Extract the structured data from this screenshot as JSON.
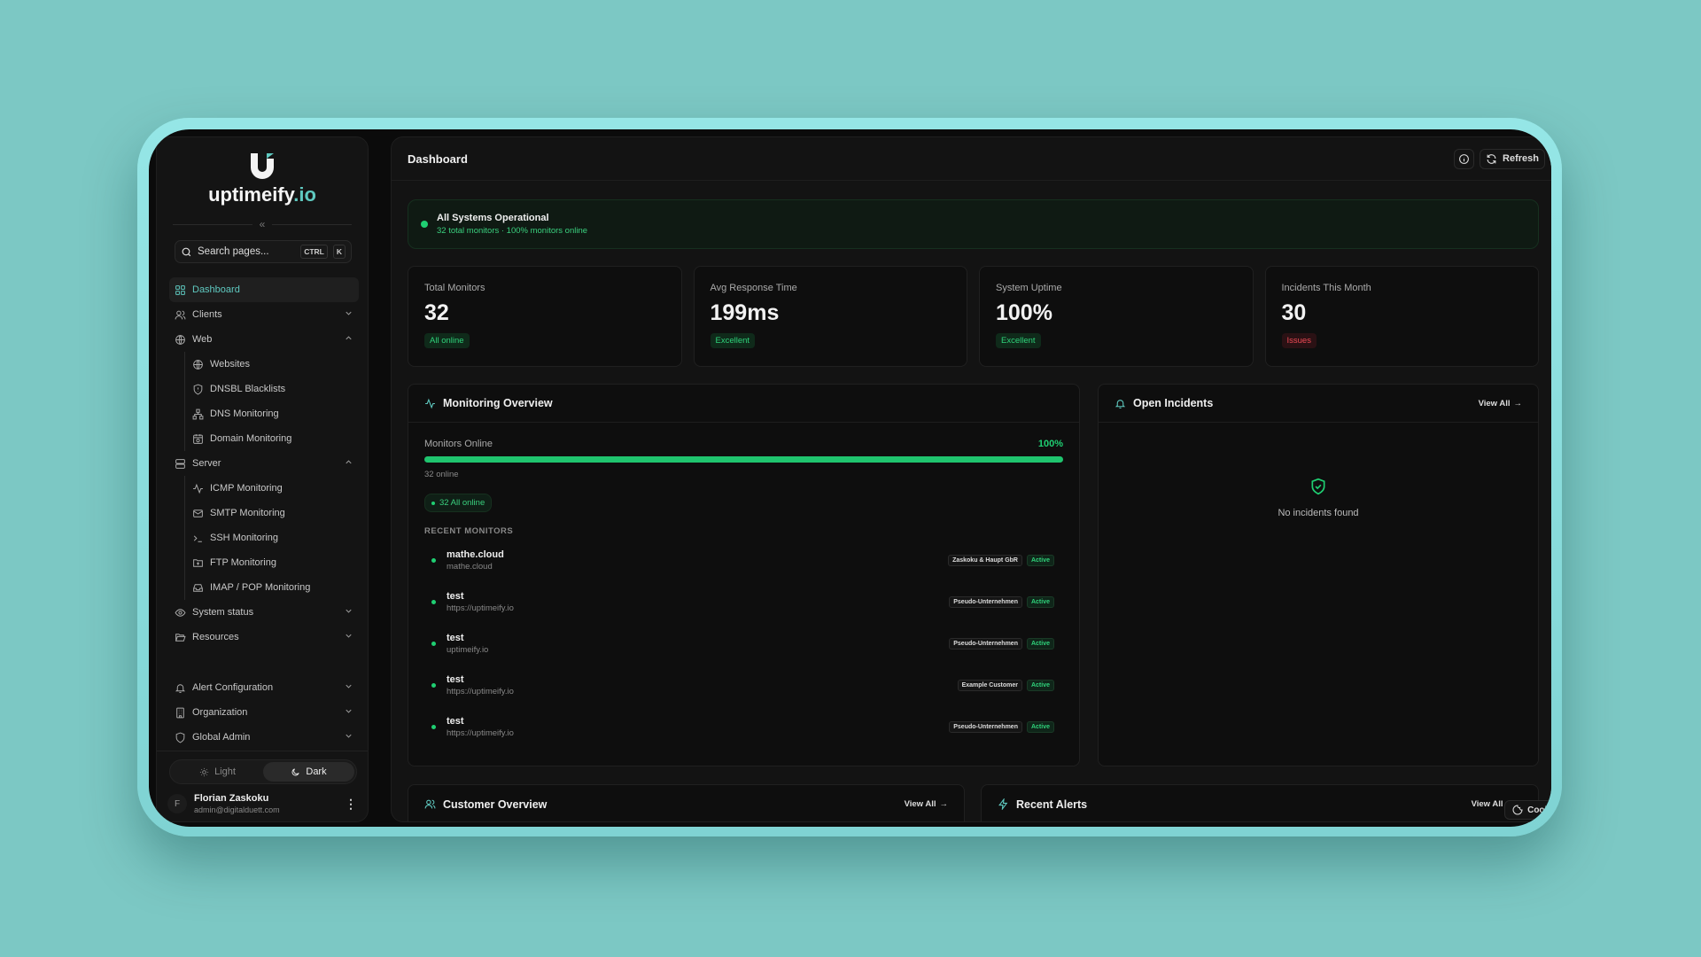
{
  "brand": {
    "name": "uptimeify",
    "tld": ".io",
    "accent": "#5fc9c0"
  },
  "sidebar": {
    "collapse_label": "«",
    "search": {
      "placeholder": "Search pages...",
      "kbd1": "CTRL",
      "kbd2": "K"
    },
    "items": [
      {
        "label": "Dashboard",
        "icon": "dashboard-icon",
        "active": true
      },
      {
        "label": "Clients",
        "icon": "users-icon",
        "chevron": "down"
      },
      {
        "label": "Web",
        "icon": "globe-icon",
        "chevron": "up"
      },
      {
        "label": "Websites",
        "icon": "globe-icon",
        "sub": true
      },
      {
        "label": "DNSBL Blacklists",
        "icon": "shield-alert-icon",
        "sub": true
      },
      {
        "label": "DNS Monitoring",
        "icon": "network-icon",
        "sub": true
      },
      {
        "label": "Domain Monitoring",
        "icon": "calendar-clock-icon",
        "sub": true
      },
      {
        "label": "Server",
        "icon": "server-icon",
        "chevron": "up"
      },
      {
        "label": "ICMP Monitoring",
        "icon": "activity-icon",
        "sub": true
      },
      {
        "label": "SMTP Monitoring",
        "icon": "mail-icon",
        "sub": true
      },
      {
        "label": "SSH Monitoring",
        "icon": "terminal-icon",
        "sub": true
      },
      {
        "label": "FTP Monitoring",
        "icon": "folder-upload-icon",
        "sub": true
      },
      {
        "label": "IMAP / POP Monitoring",
        "icon": "inbox-icon",
        "sub": true
      },
      {
        "label": "System status",
        "icon": "eye-icon",
        "chevron": "down"
      },
      {
        "label": "Resources",
        "icon": "folder-open-icon",
        "chevron": "down"
      },
      {
        "label": "Alert Configuration",
        "icon": "bell-icon",
        "chevron": "down",
        "gap": true
      },
      {
        "label": "Organization",
        "icon": "building-icon",
        "chevron": "down"
      },
      {
        "label": "Global Admin",
        "icon": "shield-icon",
        "chevron": "down"
      }
    ],
    "theme": {
      "light": "Light",
      "dark": "Dark",
      "selected": "Dark"
    },
    "user": {
      "initial": "F",
      "name": "Florian Zaskoku",
      "email": "admin@digitalduett.com"
    }
  },
  "header": {
    "title": "Dashboard",
    "refresh": "Refresh"
  },
  "banner": {
    "title": "All Systems Operational",
    "subtitle": "32 total monitors · 100% monitors online"
  },
  "stats": [
    {
      "label": "Total Monitors",
      "value": "32",
      "badge": "All online",
      "tone": "green"
    },
    {
      "label": "Avg Response Time",
      "value": "199ms",
      "badge": "Excellent",
      "tone": "green"
    },
    {
      "label": "System Uptime",
      "value": "100%",
      "badge": "Excellent",
      "tone": "green"
    },
    {
      "label": "Incidents This Month",
      "value": "30",
      "badge": "Issues",
      "tone": "red"
    }
  ],
  "monitoring": {
    "title": "Monitoring Overview",
    "online_label": "Monitors Online",
    "online_pct": "100%",
    "online_fraction": 1.0,
    "online_count": "32 online",
    "pill": "32 All online",
    "recent_label": "RECENT MONITORS",
    "monitors": [
      {
        "name": "mathe.cloud",
        "url": "mathe.cloud",
        "customer": "Zaskoku & Haupt GbR",
        "status": "Active"
      },
      {
        "name": "test",
        "url": "https://uptimeify.io",
        "customer": "Pseudo-Unternehmen",
        "status": "Active"
      },
      {
        "name": "test",
        "url": "uptimeify.io",
        "customer": "Pseudo-Unternehmen",
        "status": "Active"
      },
      {
        "name": "test",
        "url": "https://uptimeify.io",
        "customer": "Example Customer",
        "status": "Active"
      },
      {
        "name": "test",
        "url": "https://uptimeify.io",
        "customer": "Pseudo-Unternehmen",
        "status": "Active"
      }
    ]
  },
  "incidents": {
    "title": "Open Incidents",
    "view_all": "View All",
    "empty": "No incidents found"
  },
  "customers": {
    "title": "Customer Overview",
    "view_all": "View All"
  },
  "alerts": {
    "title": "Recent Alerts",
    "view_all": "View All"
  },
  "cookies": {
    "label": "Cookies"
  }
}
